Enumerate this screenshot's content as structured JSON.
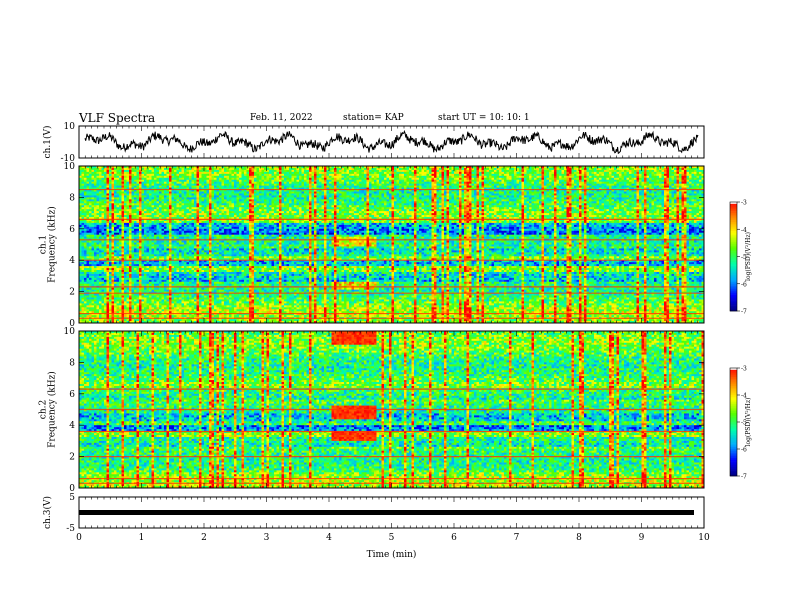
{
  "header": {
    "title": "VLF Spectra",
    "date": "Feb. 11, 2022",
    "station": "station= KAP",
    "start": "start  UT =   10: 10: 1"
  },
  "chart_data": [
    {
      "type": "line",
      "panel": "ch1-waveform",
      "ylabel": "ch.1(V)",
      "ylim": [
        -10,
        10
      ],
      "yticks": [
        "10",
        "-10"
      ],
      "xlim": [
        0,
        10
      ],
      "series": [
        {
          "description_only": true
        }
      ]
    },
    {
      "type": "heatmap",
      "panel": "ch1-spectrogram",
      "ylabel": "ch.1\nFrequency (kHz)",
      "ylim": [
        0,
        10
      ],
      "yticks": [
        "0",
        "2",
        "4",
        "6",
        "8",
        "10"
      ],
      "xlim": [
        0,
        10
      ],
      "colorbar": {
        "label": "log(PSD)(V²/Hz)",
        "range": [
          -7,
          -3
        ],
        "ticks": [
          "-3",
          "-4",
          "-5",
          "-6",
          "-7"
        ]
      }
    },
    {
      "type": "heatmap",
      "panel": "ch2-spectrogram",
      "ylabel": "ch.2\nFrequency (kHz)",
      "ylim": [
        0,
        10
      ],
      "yticks": [
        "0",
        "2",
        "4",
        "6",
        "8",
        "10"
      ],
      "xlim": [
        0,
        10
      ],
      "colorbar": {
        "label": "log(PSD)(V²/Hz)",
        "range": [
          -7,
          -3
        ],
        "ticks": [
          "-3",
          "-4",
          "-5",
          "-6",
          "-7"
        ]
      }
    },
    {
      "type": "line",
      "panel": "ch3-waveform",
      "ylabel": "ch.3(V)",
      "ylim": [
        -5,
        5
      ],
      "yticks": [
        "5",
        "-5"
      ],
      "xlim": [
        0,
        10
      ],
      "series": [
        {
          "level": 0
        }
      ]
    }
  ],
  "xaxis": {
    "label": "Time (min)",
    "ticks": [
      "0",
      "1",
      "2",
      "3",
      "4",
      "5",
      "6",
      "7",
      "8",
      "9",
      "10"
    ]
  },
  "colors": {
    "colormap": [
      "#000080",
      "#0000ff",
      "#00aaff",
      "#00ffaa",
      "#55ff00",
      "#ffff00",
      "#ff8800",
      "#ff0000",
      "#ffffff"
    ]
  }
}
